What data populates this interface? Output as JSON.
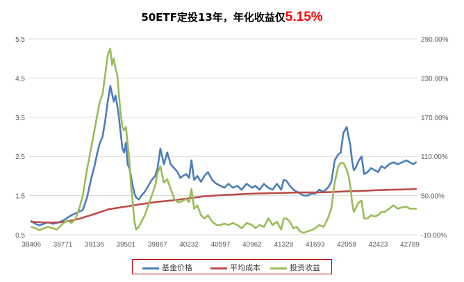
{
  "chart_data": {
    "type": "line",
    "title": "50ETF定投13年，年化收益仅",
    "title_highlight": "5.15%",
    "colors": {
      "title_highlight": "#ff0000",
      "grid": "#d9d9d9",
      "legend_border": "#c00000"
    },
    "x_tick_labels": [
      "38406",
      "38771",
      "39136",
      "39501",
      "39867",
      "40232",
      "40597",
      "40962",
      "41328",
      "41693",
      "42058",
      "42423",
      "42789"
    ],
    "xlim": [
      38380,
      42870
    ],
    "ylim_left": [
      0.5,
      5.5
    ],
    "yticks_left": [
      "0.5",
      "1.5",
      "2.5",
      "3.5",
      "4.5",
      "5.5"
    ],
    "ylim_right": [
      -0.1,
      2.9
    ],
    "yticks_right": [
      "-10.00%",
      "50.00%",
      "110.00%",
      "170.00%",
      "230.00%",
      "290.00%"
    ],
    "grid": true,
    "legend_position": "bottom",
    "series": [
      {
        "name": "基金价格",
        "axis": "left",
        "color": "#4a7ebb",
        "x": [
          38406,
          38450,
          38500,
          38550,
          38600,
          38650,
          38700,
          38771,
          38820,
          38870,
          38920,
          38960,
          39000,
          39050,
          39100,
          39136,
          39170,
          39200,
          39230,
          39260,
          39290,
          39320,
          39340,
          39360,
          39380,
          39400,
          39420,
          39440,
          39460,
          39480,
          39501,
          39520,
          39540,
          39560,
          39580,
          39600,
          39620,
          39650,
          39680,
          39720,
          39760,
          39800,
          39840,
          39867,
          39900,
          39940,
          39980,
          40020,
          40060,
          40100,
          40130,
          40160,
          40200,
          40232,
          40260,
          40290,
          40330,
          40370,
          40410,
          40450,
          40500,
          40550,
          40597,
          40640,
          40690,
          40740,
          40790,
          40840,
          40900,
          40962,
          41000,
          41050,
          41100,
          41150,
          41200,
          41250,
          41300,
          41328,
          41360,
          41400,
          41440,
          41480,
          41520,
          41560,
          41600,
          41650,
          41693,
          41740,
          41790,
          41840,
          41880,
          41920,
          41960,
          41990,
          42020,
          42058,
          42080,
          42100,
          42120,
          42140,
          42160,
          42180,
          42200,
          42230,
          42260,
          42300,
          42340,
          42380,
          42423,
          42460,
          42500,
          42550,
          42600,
          42650,
          42700,
          42750,
          42789,
          42830,
          42860
        ],
        "values": [
          0.85,
          0.78,
          0.74,
          0.78,
          0.82,
          0.78,
          0.8,
          0.86,
          0.93,
          1.0,
          1.05,
          1.09,
          1.13,
          1.45,
          1.95,
          2.25,
          2.6,
          2.85,
          3.0,
          3.4,
          3.9,
          4.3,
          4.1,
          3.9,
          4.05,
          3.8,
          3.5,
          3.1,
          2.7,
          2.6,
          2.85,
          2.3,
          2.2,
          2.0,
          1.75,
          1.55,
          1.45,
          1.4,
          1.5,
          1.6,
          1.75,
          1.9,
          2.0,
          2.2,
          2.7,
          2.3,
          2.6,
          2.3,
          2.2,
          2.1,
          1.95,
          2.0,
          2.05,
          1.95,
          2.4,
          1.9,
          2.0,
          1.85,
          2.0,
          2.1,
          1.9,
          1.8,
          1.75,
          1.7,
          1.8,
          1.7,
          1.75,
          1.65,
          1.8,
          1.7,
          1.75,
          1.65,
          1.8,
          1.7,
          1.65,
          1.8,
          1.65,
          1.9,
          1.88,
          1.75,
          1.65,
          1.6,
          1.55,
          1.5,
          1.5,
          1.55,
          1.55,
          1.65,
          1.6,
          1.7,
          1.85,
          2.4,
          2.55,
          2.6,
          3.1,
          3.25,
          3.0,
          2.8,
          2.4,
          2.15,
          2.2,
          2.3,
          2.4,
          2.5,
          2.05,
          2.1,
          2.2,
          2.15,
          2.1,
          2.25,
          2.2,
          2.3,
          2.35,
          2.3,
          2.35,
          2.4,
          2.35,
          2.3,
          2.35
        ]
      },
      {
        "name": "平均成本",
        "axis": "left",
        "color": "#be4b48",
        "x": [
          38406,
          38600,
          38771,
          38950,
          39136,
          39300,
          39501,
          39700,
          39867,
          40050,
          40232,
          40400,
          40597,
          40780,
          40962,
          41150,
          41328,
          41500,
          41693,
          41880,
          42058,
          42240,
          42423,
          42600,
          42789,
          42860
        ],
        "values": [
          0.83,
          0.81,
          0.82,
          0.9,
          1.03,
          1.15,
          1.22,
          1.29,
          1.34,
          1.38,
          1.43,
          1.48,
          1.51,
          1.53,
          1.55,
          1.56,
          1.57,
          1.58,
          1.58,
          1.59,
          1.61,
          1.62,
          1.64,
          1.65,
          1.66,
          1.67
        ]
      },
      {
        "name": "投资收益",
        "axis": "right",
        "color": "#9bbb59",
        "x": [
          38406,
          38450,
          38500,
          38550,
          38600,
          38650,
          38700,
          38771,
          38820,
          38870,
          38920,
          38960,
          39000,
          39050,
          39100,
          39136,
          39170,
          39200,
          39230,
          39260,
          39290,
          39320,
          39340,
          39360,
          39380,
          39400,
          39420,
          39440,
          39460,
          39480,
          39501,
          39520,
          39540,
          39560,
          39580,
          39600,
          39620,
          39650,
          39680,
          39720,
          39760,
          39800,
          39840,
          39867,
          39900,
          39940,
          39980,
          40020,
          40060,
          40100,
          40130,
          40160,
          40200,
          40232,
          40260,
          40290,
          40330,
          40370,
          40410,
          40450,
          40500,
          40550,
          40597,
          40640,
          40690,
          40740,
          40790,
          40840,
          40900,
          40962,
          41000,
          41050,
          41100,
          41150,
          41200,
          41250,
          41300,
          41328,
          41360,
          41400,
          41440,
          41480,
          41520,
          41560,
          41600,
          41650,
          41693,
          41740,
          41790,
          41840,
          41880,
          41920,
          41960,
          41990,
          42020,
          42058,
          42080,
          42100,
          42120,
          42140,
          42160,
          42180,
          42200,
          42230,
          42260,
          42300,
          42340,
          42380,
          42423,
          42460,
          42500,
          42550,
          42600,
          42650,
          42700,
          42750,
          42789,
          42830,
          42860
        ],
        "values": [
          0.02,
          0.0,
          -0.03,
          0.0,
          0.02,
          0.0,
          -0.02,
          0.07,
          0.12,
          0.08,
          0.15,
          0.3,
          0.5,
          0.9,
          1.25,
          1.5,
          1.75,
          1.95,
          2.05,
          2.35,
          2.65,
          2.75,
          2.5,
          2.6,
          2.45,
          2.35,
          2.05,
          1.75,
          1.55,
          1.5,
          1.55,
          1.3,
          1.05,
          0.65,
          0.4,
          0.1,
          -0.02,
          0.02,
          0.1,
          0.2,
          0.35,
          0.5,
          0.65,
          0.85,
          0.95,
          0.7,
          0.75,
          0.6,
          0.45,
          0.4,
          0.4,
          0.42,
          0.45,
          0.4,
          0.6,
          0.3,
          0.35,
          0.2,
          0.15,
          0.2,
          0.1,
          0.05,
          0.05,
          0.07,
          0.05,
          0.08,
          0.05,
          0.0,
          0.08,
          0.05,
          0.0,
          0.05,
          0.02,
          0.15,
          0.05,
          0.1,
          -0.02,
          0.15,
          0.15,
          0.1,
          0.0,
          0.02,
          -0.05,
          -0.07,
          -0.05,
          -0.03,
          0.0,
          0.05,
          0.02,
          0.15,
          0.3,
          0.7,
          0.95,
          1.0,
          1.0,
          0.9,
          0.8,
          0.65,
          0.4,
          0.25,
          0.3,
          0.35,
          0.4,
          0.42,
          0.15,
          0.15,
          0.2,
          0.18,
          0.2,
          0.25,
          0.25,
          0.3,
          0.35,
          0.3,
          0.32,
          0.33,
          0.3,
          0.3,
          0.3
        ]
      }
    ]
  }
}
